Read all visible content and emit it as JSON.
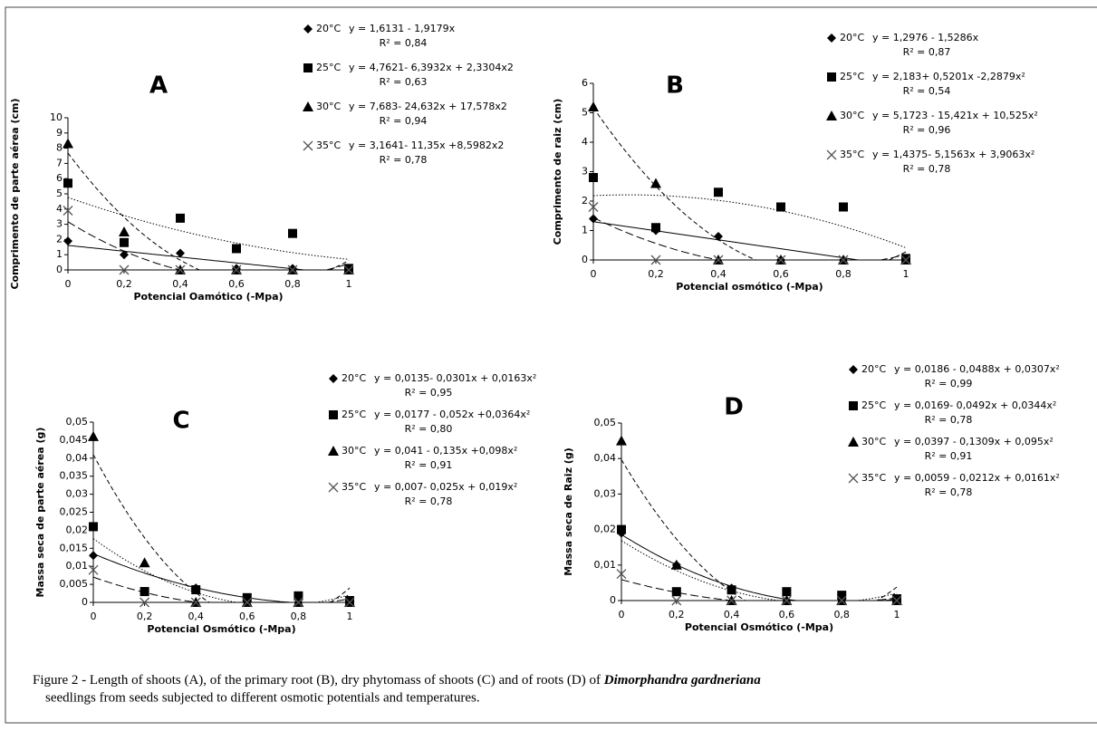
{
  "chart_data": [
    {
      "type": "scatter",
      "title": "A",
      "xlabel": "Potencial Oamótico (-Mpa)",
      "ylabel": "Comprimento de parte aérea (cm)",
      "x": [
        0,
        0.2,
        0.4,
        0.6,
        0.8,
        1
      ],
      "xlim": [
        0,
        1
      ],
      "xticks": [
        0,
        {
          "value": 0.2,
          "label": "0,2"
        },
        {
          "value": 0.4,
          "label": "0,4"
        },
        {
          "value": 0.6,
          "label": "0,6"
        },
        {
          "value": 0.8,
          "label": "0,8"
        },
        1
      ],
      "ylim": [
        0,
        10
      ],
      "yticks": [
        0,
        1,
        2,
        3,
        4,
        5,
        6,
        7,
        8,
        9,
        10
      ],
      "series": [
        {
          "name": "20°C",
          "marker": "diamond",
          "line_style": "solid",
          "color": "#000000",
          "values": [
            1.9,
            1.0,
            1.1,
            0.1,
            0.1,
            0.1
          ],
          "trend": [
            1.6131,
            -1.9179
          ],
          "equation": "y = 1,6131 - 1,9179x",
          "r2": "R² = 0,84"
        },
        {
          "name": "25°C",
          "marker": "square",
          "line_style": "dotted",
          "color": "#000000",
          "values": [
            5.7,
            1.8,
            3.4,
            1.4,
            2.4,
            0.1
          ],
          "trend": [
            4.7621,
            -6.3932,
            2.3304
          ],
          "equation": "y = 4,7621- 6,3932x + 2,3304x2",
          "r2": "R² = 0,63"
        },
        {
          "name": "30°C",
          "marker": "triangle",
          "line_style": "dashed",
          "color": "#000000",
          "values": [
            8.3,
            2.5,
            0,
            0,
            0,
            0
          ],
          "trend": [
            7.683,
            -24.632,
            17.578
          ],
          "equation": "y = 7,683- 24,632x + 17,578x2",
          "r2": "R² = 0,94"
        },
        {
          "name": "35°C",
          "marker": "cross",
          "line_style": "longdash",
          "color": "#000000",
          "values": [
            3.9,
            0,
            0,
            0,
            0,
            0
          ],
          "trend": [
            3.1641,
            -11.35,
            8.5982
          ],
          "equation": "y = 3,1641- 11,35x +8,5982x2",
          "r2": "R² = 0,78"
        }
      ]
    },
    {
      "type": "scatter",
      "title": "B",
      "xlabel": "Potencial osmótico (-Mpa)",
      "ylabel": "Comprimento de raiz (cm)",
      "x": [
        0,
        0.2,
        0.4,
        0.6,
        0.8,
        1
      ],
      "xlim": [
        0,
        1
      ],
      "xticks": [
        0,
        {
          "value": 0.2,
          "label": "0,2"
        },
        {
          "value": 0.4,
          "label": "0,4"
        },
        {
          "value": 0.6,
          "label": "0,6"
        },
        {
          "value": 0.8,
          "label": "0,8"
        },
        1
      ],
      "ylim": [
        0,
        6
      ],
      "yticks": [
        0,
        1,
        2,
        3,
        4,
        5,
        6
      ],
      "series": [
        {
          "name": "20°C",
          "marker": "diamond",
          "line_style": "solid",
          "color": "#000000",
          "values": [
            1.4,
            1.0,
            0.8,
            0,
            0,
            0
          ],
          "trend": [
            1.2976,
            -1.5286
          ],
          "equation": "y = 1,2976 - 1,5286x",
          "r2": "R² = 0,87"
        },
        {
          "name": "25°C",
          "marker": "square",
          "line_style": "dotted",
          "color": "#000000",
          "values": [
            2.8,
            1.1,
            2.3,
            1.8,
            1.8,
            0.05
          ],
          "trend": [
            2.183,
            0.5201,
            -2.2879
          ],
          "equation": "y = 2,183+ 0,5201x -2,2879x²",
          "r2": "R² = 0,54"
        },
        {
          "name": "30°C",
          "marker": "triangle",
          "line_style": "dashed",
          "color": "#000000",
          "values": [
            5.2,
            2.6,
            0,
            0,
            0,
            0
          ],
          "trend": [
            5.1723,
            -15.421,
            10.525
          ],
          "equation": "y = 5,1723 - 15,421x + 10,525x²",
          "r2": "R² = 0,96"
        },
        {
          "name": "35°C",
          "marker": "cross",
          "line_style": "longdash",
          "color": "#000000",
          "values": [
            1.8,
            0,
            0,
            0,
            0,
            0
          ],
          "trend": [
            1.4375,
            -5.1563,
            3.9063
          ],
          "equation": "y = 1,4375- 5,1563x + 3,9063x²",
          "r2": "R² = 0,78"
        }
      ]
    },
    {
      "type": "scatter",
      "title": "C",
      "xlabel": "Potencial Osmótico (-Mpa)",
      "ylabel": "Massa seca de parte aérea (g)",
      "x": [
        0,
        0.2,
        0.4,
        0.6,
        0.8,
        1
      ],
      "xlim": [
        0,
        1
      ],
      "xticks": [
        0,
        {
          "value": 0.2,
          "label": "0,2"
        },
        {
          "value": 0.4,
          "label": "0,4"
        },
        {
          "value": 0.6,
          "label": "0,6"
        },
        {
          "value": 0.8,
          "label": "0,8"
        },
        1
      ],
      "ylim": [
        0,
        0.05
      ],
      "yticks": [
        0,
        {
          "value": 0.005,
          "label": "0,005"
        },
        {
          "value": 0.01,
          "label": "0,01"
        },
        {
          "value": 0.015,
          "label": "0,015"
        },
        {
          "value": 0.02,
          "label": "0,02"
        },
        {
          "value": 0.025,
          "label": "0,025"
        },
        {
          "value": 0.03,
          "label": "0,03"
        },
        {
          "value": 0.035,
          "label": "0,035"
        },
        {
          "value": 0.04,
          "label": "0,04"
        },
        {
          "value": 0.045,
          "label": "0,045"
        },
        {
          "value": 0.05,
          "label": "0,05"
        }
      ],
      "series": [
        {
          "name": "20°C",
          "marker": "diamond",
          "line_style": "solid",
          "color": "#000000",
          "values": [
            0.013,
            0.003,
            0.004,
            0.001,
            0,
            0
          ],
          "trend": [
            0.0135,
            -0.0301,
            0.0163
          ],
          "equation": "y = 0,0135- 0,0301x + 0,0163x²",
          "r2": "R² = 0,95"
        },
        {
          "name": "25°C",
          "marker": "square",
          "line_style": "dotted",
          "color": "#000000",
          "values": [
            0.021,
            0.003,
            0.0035,
            0.0013,
            0.0018,
            0.0005
          ],
          "trend": [
            0.0177,
            -0.052,
            0.0364
          ],
          "equation": "y = 0,0177 - 0,052x +0,0364x²",
          "r2": "R² = 0,80"
        },
        {
          "name": "30°C",
          "marker": "triangle",
          "line_style": "dashed",
          "color": "#000000",
          "values": [
            0.046,
            0.011,
            0,
            0,
            0,
            0
          ],
          "trend": [
            0.041,
            -0.135,
            0.098
          ],
          "equation": "y = 0,041 - 0,135x +0,098x²",
          "r2": "R² = 0,91"
        },
        {
          "name": "35°C",
          "marker": "cross",
          "line_style": "longdash",
          "color": "#000000",
          "values": [
            0.009,
            0,
            0,
            0,
            0,
            0
          ],
          "trend": [
            0.007,
            -0.025,
            0.019
          ],
          "equation": "y = 0,007- 0,025x + 0,019x²",
          "r2": "R² = 0,78"
        }
      ]
    },
    {
      "type": "scatter",
      "title": "D",
      "xlabel": "Potencial Osmótico (-Mpa)",
      "ylabel": "Massa seca de Raiz (g)",
      "x": [
        0,
        0.2,
        0.4,
        0.6,
        0.8,
        1
      ],
      "xlim": [
        0,
        1
      ],
      "xticks": [
        0,
        {
          "value": 0.2,
          "label": "0,2"
        },
        {
          "value": 0.4,
          "label": "0,4"
        },
        {
          "value": 0.6,
          "label": "0,6"
        },
        {
          "value": 0.8,
          "label": "0,8"
        },
        1
      ],
      "ylim": [
        0,
        0.05
      ],
      "yticks": [
        0,
        {
          "value": 0.01,
          "label": "0,01"
        },
        {
          "value": 0.02,
          "label": "0,02"
        },
        {
          "value": 0.03,
          "label": "0,03"
        },
        {
          "value": 0.04,
          "label": "0,04"
        },
        {
          "value": 0.05,
          "label": "0,05"
        }
      ],
      "series": [
        {
          "name": "20°C",
          "marker": "diamond",
          "line_style": "solid",
          "color": "#000000",
          "values": [
            0.019,
            0.01,
            0.0035,
            0,
            0,
            0
          ],
          "trend": [
            0.0186,
            -0.0488,
            0.0307
          ],
          "equation": "y = 0,0186 - 0,0488x + 0,0307x²",
          "r2": "R² = 0,99"
        },
        {
          "name": "25°C",
          "marker": "square",
          "line_style": "dotted",
          "color": "#000000",
          "values": [
            0.02,
            0.0025,
            0.003,
            0.0025,
            0.0015,
            0.0005
          ],
          "trend": [
            0.0169,
            -0.0492,
            0.0344
          ],
          "equation": "y = 0,0169- 0,0492x + 0,0344x²",
          "r2": "R² = 0,78"
        },
        {
          "name": "30°C",
          "marker": "triangle",
          "line_style": "dashed",
          "color": "#000000",
          "values": [
            0.045,
            0.01,
            0,
            0,
            0,
            0
          ],
          "trend": [
            0.0397,
            -0.1309,
            0.095
          ],
          "equation": "y = 0,0397 - 0,1309x + 0,095x²",
          "r2": "R² = 0,91"
        },
        {
          "name": "35°C",
          "marker": "cross",
          "line_style": "longdash",
          "color": "#000000",
          "values": [
            0.0075,
            0,
            0,
            0,
            0,
            0
          ],
          "trend": [
            0.0059,
            -0.0212,
            0.0161
          ],
          "equation": "y = 0,0059 - 0,0212x + 0,0161x²",
          "r2": "R² = 0,78"
        }
      ]
    }
  ],
  "caption": {
    "line1": "Figure 2 - Length of shoots (A), of the primary root (B), dry phytomass of shoots (C) and of roots (D) of",
    "species": "Dimorphandra gardneriana",
    "line2": "seedlings from seeds subjected to different osmotic potentials and temperatures."
  }
}
